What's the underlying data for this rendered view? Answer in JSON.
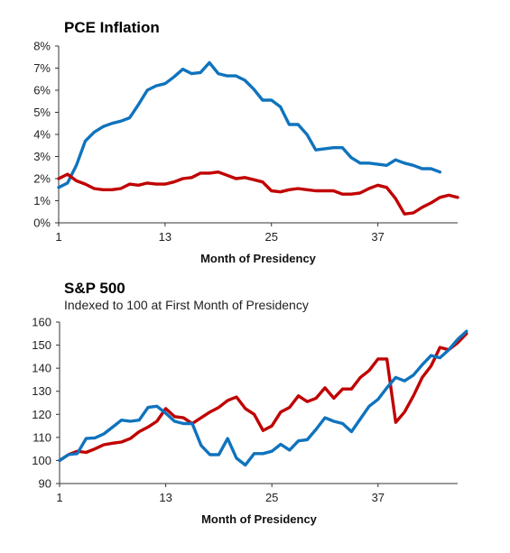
{
  "colors": {
    "blue": "#0f73bd",
    "red": "#c00000"
  },
  "chart_data": [
    {
      "type": "line",
      "title": "PCE Inflation",
      "subtitle": "",
      "xlabel": "Month of Presidency",
      "ylabel": "",
      "xlim": [
        1,
        46
      ],
      "ylim": [
        0,
        8
      ],
      "xticks": [
        1,
        13,
        25,
        37
      ],
      "ytick_labels": [
        "0%",
        "1%",
        "2%",
        "3%",
        "4%",
        "5%",
        "6%",
        "7%",
        "8%"
      ],
      "grid": false,
      "series": [
        {
          "color": "#0f73bd",
          "x": [
            1,
            2,
            3,
            4,
            5,
            6,
            7,
            8,
            9,
            10,
            11,
            12,
            13,
            14,
            15,
            16,
            17,
            18,
            19,
            20,
            21,
            22,
            23,
            24,
            25,
            26,
            27,
            28,
            29,
            30,
            31,
            32,
            33,
            34,
            35,
            36,
            37,
            38,
            39,
            40,
            41,
            42,
            43,
            44
          ],
          "values": [
            1.6,
            1.8,
            2.6,
            3.7,
            4.1,
            4.35,
            4.5,
            4.6,
            4.75,
            5.35,
            6.0,
            6.2,
            6.3,
            6.6,
            6.95,
            6.75,
            6.8,
            7.25,
            6.75,
            6.65,
            6.65,
            6.45,
            6.05,
            5.55,
            5.55,
            5.25,
            4.45,
            4.45,
            4.0,
            3.3,
            3.35,
            3.4,
            3.4,
            2.95,
            2.7,
            2.7,
            2.65,
            2.6,
            2.85,
            2.7,
            2.6,
            2.45,
            2.45,
            2.3
          ]
        },
        {
          "color": "#c00000",
          "x": [
            1,
            2,
            3,
            4,
            5,
            6,
            7,
            8,
            9,
            10,
            11,
            12,
            13,
            14,
            15,
            16,
            17,
            18,
            19,
            20,
            21,
            22,
            23,
            24,
            25,
            26,
            27,
            28,
            29,
            30,
            31,
            32,
            33,
            34,
            35,
            36,
            37,
            38,
            39,
            40,
            41,
            42,
            43,
            44,
            45,
            46
          ],
          "values": [
            2.0,
            2.2,
            1.9,
            1.75,
            1.55,
            1.5,
            1.5,
            1.55,
            1.75,
            1.7,
            1.8,
            1.75,
            1.75,
            1.85,
            2.0,
            2.05,
            2.25,
            2.25,
            2.3,
            2.15,
            2.0,
            2.05,
            1.95,
            1.85,
            1.45,
            1.4,
            1.5,
            1.55,
            1.5,
            1.45,
            1.45,
            1.45,
            1.3,
            1.3,
            1.35,
            1.55,
            1.7,
            1.6,
            1.1,
            0.4,
            0.45,
            0.7,
            0.9,
            1.15,
            1.25,
            1.15
          ]
        }
      ]
    },
    {
      "type": "line",
      "title": "S&P 500",
      "subtitle": "Indexed to 100 at First Month of Presidency",
      "xlabel": "Month of Presidency",
      "ylabel": "",
      "xlim": [
        1,
        46
      ],
      "ylim": [
        90,
        160
      ],
      "xticks": [
        1,
        13,
        25,
        37
      ],
      "ytick_labels": [
        "90",
        "100",
        "110",
        "120",
        "130",
        "140",
        "150",
        "160"
      ],
      "grid": false,
      "series": [
        {
          "color": "#c00000",
          "x": [
            1,
            2,
            3,
            4,
            5,
            6,
            7,
            8,
            9,
            10,
            11,
            12,
            13,
            14,
            15,
            16,
            17,
            18,
            19,
            20,
            21,
            22,
            23,
            24,
            25,
            26,
            27,
            28,
            29,
            30,
            31,
            32,
            33,
            34,
            35,
            36,
            37,
            38,
            39,
            40,
            41,
            42,
            43,
            44,
            45,
            46,
            47
          ],
          "values": [
            100,
            102.5,
            104,
            103.5,
            105,
            106.8,
            107.5,
            108,
            109.5,
            112.5,
            114.5,
            117,
            122.5,
            119,
            118.5,
            116,
            118.5,
            121,
            123,
            126,
            127.5,
            122.5,
            120,
            113,
            115,
            121,
            123,
            128,
            125.5,
            127,
            131.5,
            127,
            131,
            131,
            136,
            139,
            144,
            144,
            116.5,
            121,
            128,
            136,
            141,
            149,
            148,
            151,
            155
          ]
        },
        {
          "color": "#0f73bd",
          "x": [
            1,
            2,
            3,
            4,
            5,
            6,
            7,
            8,
            9,
            10,
            11,
            12,
            13,
            14,
            15,
            16,
            17,
            18,
            19,
            20,
            21,
            22,
            23,
            24,
            25,
            26,
            27,
            28,
            29,
            30,
            31,
            32,
            33,
            34,
            35,
            36,
            37,
            38,
            39,
            40,
            41,
            42,
            43,
            44,
            45,
            46,
            47
          ],
          "values": [
            100,
            102.5,
            103,
            109.5,
            109.8,
            111.5,
            114.5,
            117.5,
            117,
            117.5,
            123,
            123.5,
            120.5,
            117,
            116,
            116,
            106.5,
            102.5,
            102.5,
            109.5,
            101,
            98,
            103,
            103,
            104,
            107,
            104.5,
            108.5,
            109,
            113.5,
            118.5,
            117,
            116,
            112.5,
            118,
            123.5,
            126.5,
            131.5,
            136,
            134.5,
            137,
            141.5,
            145.5,
            144.5,
            148,
            152.5,
            156
          ]
        }
      ]
    }
  ]
}
